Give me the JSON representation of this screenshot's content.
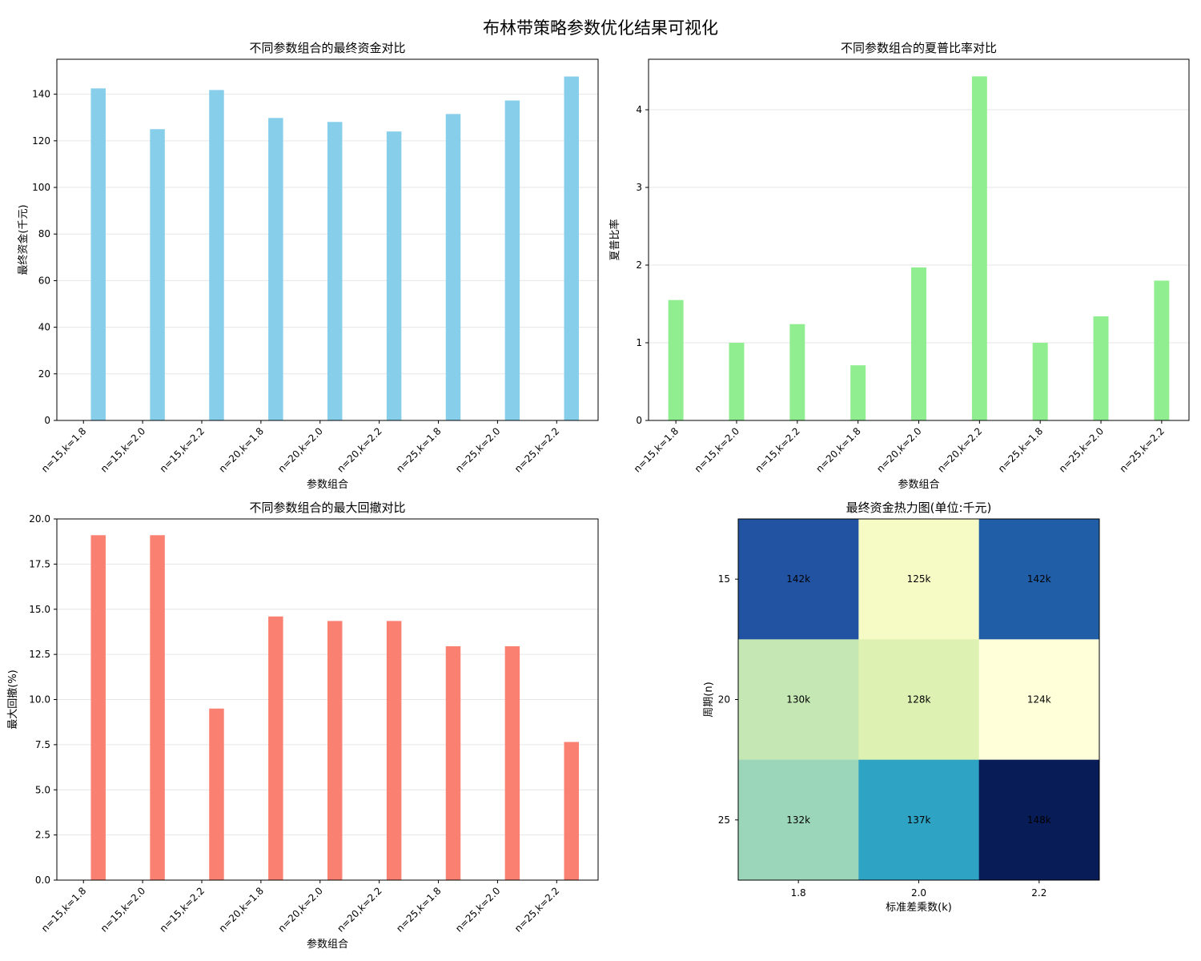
{
  "figure": {
    "suptitle": "布林带策略参数优化结果可视化"
  },
  "chart_data": [
    {
      "type": "bar",
      "title": "不同参数组合的最终资金对比",
      "xlabel": "参数组合",
      "ylabel": "最终资金(千元)",
      "categories": [
        "n=15,k=1.8",
        "n=15,k=2.0",
        "n=15,k=2.2",
        "n=20,k=1.8",
        "n=20,k=2.0",
        "n=20,k=2.2",
        "n=25,k=1.8",
        "n=25,k=2.0",
        "n=25,k=2.2"
      ],
      "values": [
        142.5,
        125.0,
        141.8,
        129.8,
        128.1,
        124.0,
        131.5,
        137.3,
        147.6
      ],
      "ylim": [
        0,
        155
      ],
      "yticks": [
        0,
        20,
        40,
        60,
        80,
        100,
        120,
        140
      ],
      "color": "#87ceeb",
      "bar_offset": 0.25,
      "grid": "y"
    },
    {
      "type": "bar",
      "title": "不同参数组合的夏普比率对比",
      "xlabel": "参数组合",
      "ylabel": "夏普比率",
      "categories": [
        "n=15,k=1.8",
        "n=15,k=2.0",
        "n=15,k=2.2",
        "n=20,k=1.8",
        "n=20,k=2.0",
        "n=20,k=2.2",
        "n=25,k=1.8",
        "n=25,k=2.0",
        "n=25,k=2.2"
      ],
      "values": [
        1.55,
        1.0,
        1.24,
        0.71,
        1.97,
        4.43,
        1.0,
        1.34,
        1.8
      ],
      "ylim": [
        0,
        4.65
      ],
      "yticks": [
        0,
        1,
        2,
        3,
        4
      ],
      "color": "#90ee90",
      "bar_offset": 0.0,
      "grid": "y"
    },
    {
      "type": "bar",
      "title": "不同参数组合的最大回撤对比",
      "xlabel": "参数组合",
      "ylabel": "最大回撤(%)",
      "categories": [
        "n=15,k=1.8",
        "n=15,k=2.0",
        "n=15,k=2.2",
        "n=20,k=1.8",
        "n=20,k=2.0",
        "n=20,k=2.2",
        "n=25,k=1.8",
        "n=25,k=2.0",
        "n=25,k=2.2"
      ],
      "values": [
        19.1,
        19.1,
        9.5,
        14.6,
        14.35,
        14.35,
        12.95,
        12.95,
        7.65
      ],
      "ylim": [
        0,
        20
      ],
      "yticks": [
        "0.0",
        "2.5",
        "5.0",
        "7.5",
        "10.0",
        "12.5",
        "15.0",
        "17.5",
        "20.0"
      ],
      "color": "#fa8072",
      "bar_offset": 0.25,
      "grid": "y"
    },
    {
      "type": "heatmap",
      "title": "最终资金热力图(单位:千元)",
      "xlabel": "标准差乘数(k)",
      "ylabel": "周期(n)",
      "x": [
        "1.8",
        "2.0",
        "2.2"
      ],
      "y": [
        "15",
        "20",
        "25"
      ],
      "values": [
        [
          142,
          125,
          142
        ],
        [
          130,
          128,
          124
        ],
        [
          132,
          137,
          148
        ]
      ],
      "cell_labels": [
        [
          "142k",
          "125k",
          "142k"
        ],
        [
          "130k",
          "128k",
          "124k"
        ],
        [
          "132k",
          "137k",
          "148k"
        ]
      ],
      "colormap": "YlGnBu",
      "colors": [
        [
          "#2253a3",
          "#f6fbc6",
          "#205fa8"
        ],
        [
          "#c4e7b4",
          "#ddf1b2",
          "#ffffd9"
        ],
        [
          "#9bd6bb",
          "#2ea3c3",
          "#081d58"
        ]
      ]
    }
  ]
}
